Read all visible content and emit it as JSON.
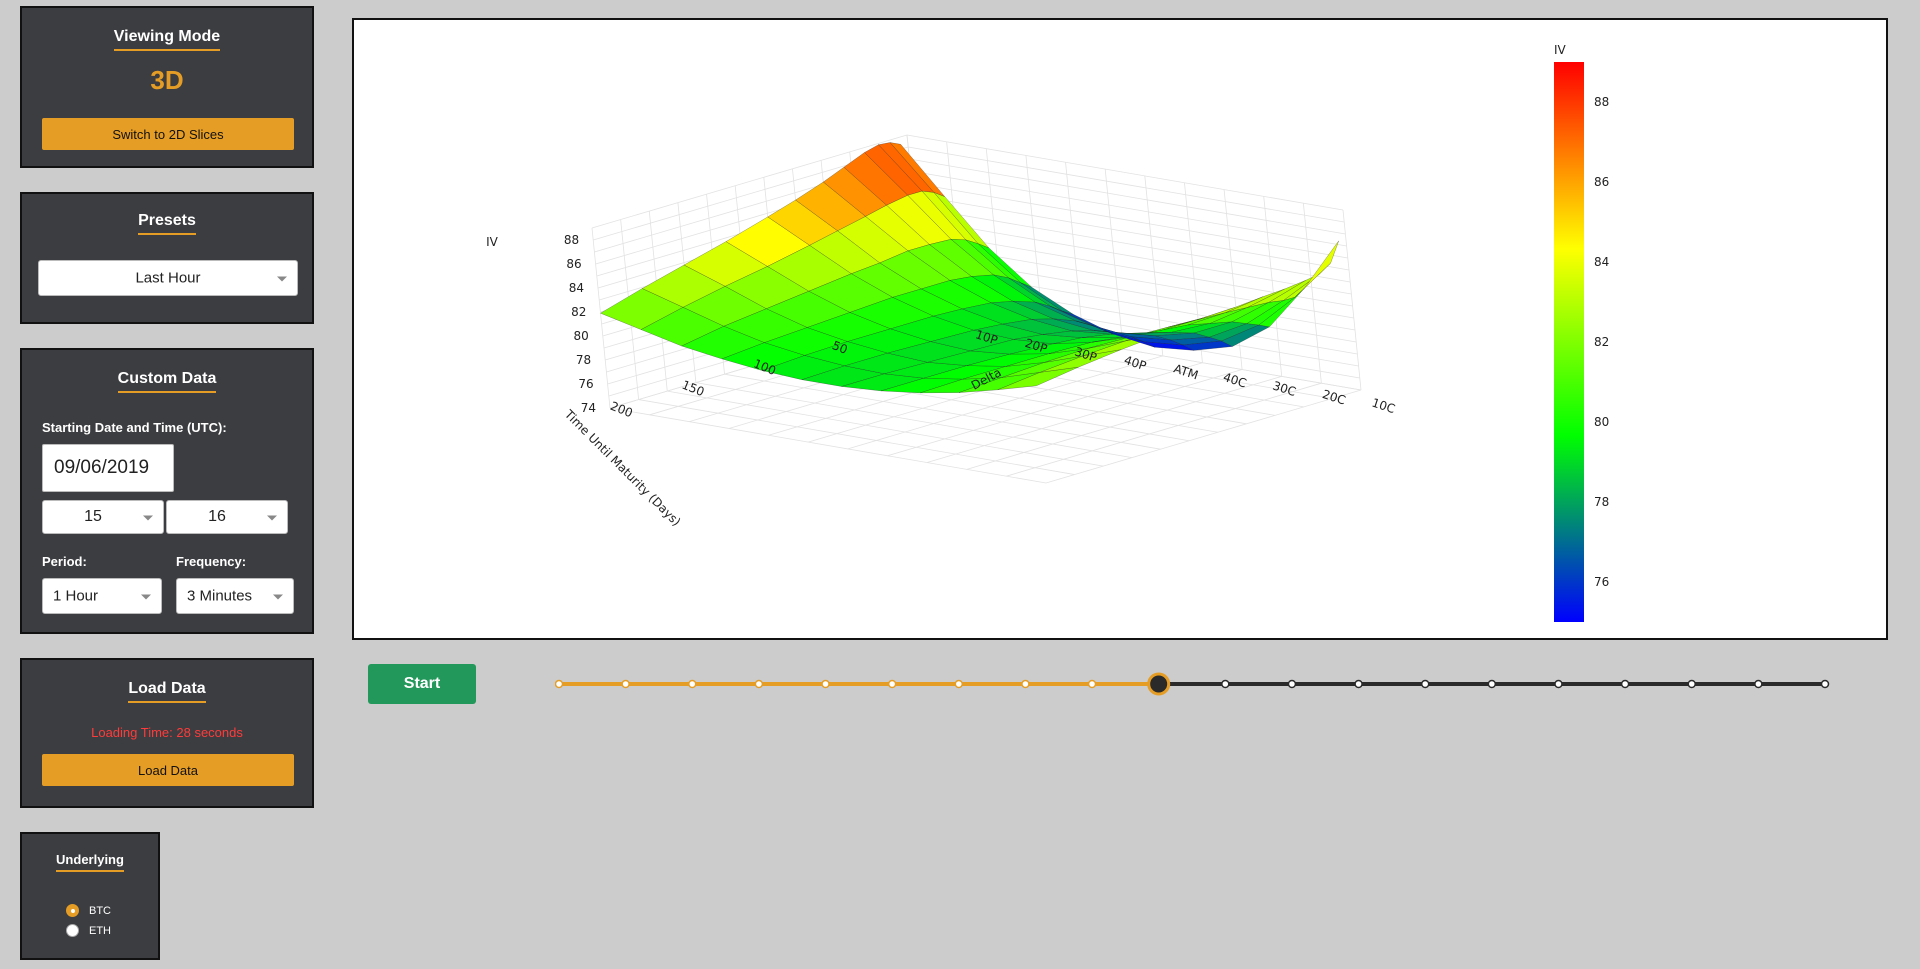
{
  "viewing_mode": {
    "title": "Viewing Mode",
    "mode": "3D",
    "switch_label": "Switch to 2D Slices"
  },
  "presets": {
    "title": "Presets",
    "selected": "Last Hour"
  },
  "custom_data": {
    "title": "Custom Data",
    "start_label": "Starting Date and Time (UTC):",
    "date_value": "09/06/2019",
    "hour_value": "15",
    "minute_value": "16",
    "period_label": "Period:",
    "period_value": "1 Hour",
    "frequency_label": "Frequency:",
    "frequency_value": "3 Minutes"
  },
  "load_data": {
    "title": "Load Data",
    "status": "Loading Time: 28 seconds",
    "status_color": "#ff3b3b",
    "button_label": "Load Data"
  },
  "underlying": {
    "title": "Underlying",
    "options": [
      "BTC",
      "ETH"
    ],
    "selected": "BTC"
  },
  "playback": {
    "start_label": "Start",
    "step_count": 20,
    "current_step": 9
  },
  "colors": {
    "accent": "#e59d25",
    "panel_bg": "#3c3d40",
    "start_green": "#22995a"
  },
  "chart_data": {
    "type": "surface",
    "zlabel": "IV",
    "xlabel": "Delta",
    "ylabel": "Time Until Maturity (Days)",
    "z_ticks": [
      74,
      76,
      78,
      80,
      82,
      84,
      86,
      88
    ],
    "delta_ticks": [
      "10P",
      "20P",
      "30P",
      "40P",
      "ATM",
      "40C",
      "30C",
      "20C",
      "10C"
    ],
    "days_ticks": [
      50,
      100,
      150,
      200
    ],
    "colorbar": {
      "title": "IV",
      "ticks": [
        76,
        78,
        80,
        82,
        84,
        86,
        88
      ],
      "range": [
        75,
        89
      ],
      "colorscale": [
        "#0000ff",
        "#00ff00",
        "#ffff00",
        "#ff0000"
      ]
    },
    "days": [
      5,
      12,
      20,
      30,
      45,
      60,
      80,
      100,
      130,
      160,
      190,
      220
    ],
    "delta_index": [
      0,
      1,
      2,
      3,
      4,
      5,
      6,
      7,
      8,
      9,
      10,
      11
    ],
    "iv": [
      [
        88.4,
        84.6,
        80.9,
        78.2,
        76.5,
        75.4,
        74.9,
        75.2,
        76.1,
        78.3,
        82.1,
        86.6
      ],
      [
        88.8,
        85.2,
        81.5,
        78.8,
        77.0,
        76.0,
        75.6,
        75.9,
        76.8,
        78.7,
        81.6,
        85.0
      ],
      [
        88.9,
        85.6,
        82.1,
        79.5,
        77.7,
        76.7,
        76.3,
        76.6,
        77.4,
        79.1,
        81.6,
        84.4
      ],
      [
        88.6,
        85.6,
        82.5,
        80.1,
        78.4,
        77.4,
        77.0,
        77.3,
        78.1,
        79.6,
        81.8,
        84.2
      ],
      [
        87.9,
        85.3,
        82.6,
        80.5,
        79.0,
        78.1,
        77.7,
        78.0,
        78.7,
        80.0,
        81.9,
        84.0
      ],
      [
        87.2,
        84.9,
        82.6,
        80.7,
        79.4,
        78.6,
        78.2,
        78.5,
        79.2,
        80.4,
        82.0,
        83.9
      ],
      [
        86.4,
        84.4,
        82.3,
        80.7,
        79.6,
        78.9,
        78.6,
        78.9,
        79.5,
        80.6,
        82.1,
        83.7
      ],
      [
        85.7,
        83.9,
        82.1,
        80.7,
        79.7,
        79.1,
        78.9,
        79.1,
        79.8,
        80.8,
        82.2,
        83.6
      ],
      [
        84.7,
        83.2,
        81.7,
        80.5,
        79.7,
        79.2,
        79.0,
        79.3,
        79.9,
        80.9,
        82.1,
        83.3
      ],
      [
        83.8,
        82.6,
        81.3,
        80.3,
        79.7,
        79.3,
        79.1,
        79.4,
        79.9,
        80.8,
        81.9,
        83.0
      ],
      [
        82.9,
        81.9,
        80.9,
        80.1,
        79.6,
        79.3,
        79.2,
        79.4,
        79.9,
        80.6,
        81.6,
        82.6
      ],
      [
        81.9,
        81.1,
        80.3,
        79.8,
        79.4,
        79.2,
        79.2,
        79.4,
        79.8,
        80.4,
        81.2,
        82.1
      ]
    ]
  }
}
